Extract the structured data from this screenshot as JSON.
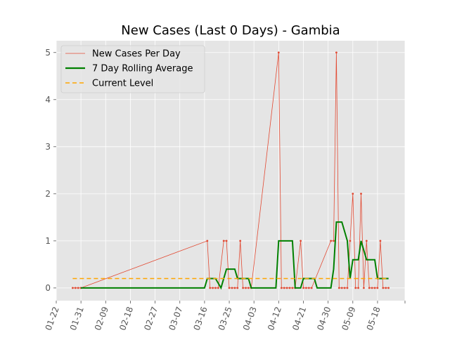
{
  "chart_data": {
    "type": "line",
    "title": "New Cases (Last 0 Days) - Gambia",
    "xlabel": "",
    "ylabel": "",
    "x_ticks": [
      "01-22",
      "01-31",
      "02-09",
      "02-18",
      "02-27",
      "03-07",
      "03-16",
      "03-25",
      "04-03",
      "04-12",
      "04-21",
      "04-30",
      "05-09",
      "05-18"
    ],
    "y_ticks": [
      "0",
      "1",
      "2",
      "3",
      "4",
      "5"
    ],
    "ylim": [
      -0.27,
      5.25
    ],
    "xlim": [
      "01-22",
      "05-28"
    ],
    "grid": true,
    "legend_position": "top-left",
    "series": [
      {
        "name": "New Cases Per Day",
        "style": "line-with-markers",
        "color": "#E24A33",
        "points": [
          [
            "01-28",
            0
          ],
          [
            "01-29",
            0
          ],
          [
            "01-30",
            0
          ],
          [
            "01-31",
            0
          ],
          [
            "03-17",
            1
          ],
          [
            "03-18",
            0
          ],
          [
            "03-19",
            0
          ],
          [
            "03-20",
            0
          ],
          [
            "03-21",
            0
          ],
          [
            "03-23",
            1
          ],
          [
            "03-24",
            1
          ],
          [
            "03-25",
            0
          ],
          [
            "03-26",
            0
          ],
          [
            "03-27",
            0
          ],
          [
            "03-28",
            0
          ],
          [
            "03-29",
            1
          ],
          [
            "03-30",
            0
          ],
          [
            "03-31",
            0
          ],
          [
            "04-01",
            0
          ],
          [
            "04-02",
            0
          ],
          [
            "04-12",
            5
          ],
          [
            "04-13",
            0
          ],
          [
            "04-14",
            0
          ],
          [
            "04-15",
            0
          ],
          [
            "04-16",
            0
          ],
          [
            "04-17",
            0
          ],
          [
            "04-18",
            0
          ],
          [
            "04-20",
            1
          ],
          [
            "04-21",
            0
          ],
          [
            "04-22",
            0
          ],
          [
            "04-23",
            0
          ],
          [
            "04-24",
            0
          ],
          [
            "05-01",
            1
          ],
          [
            "05-02",
            1
          ],
          [
            "05-03",
            5
          ],
          [
            "05-04",
            0
          ],
          [
            "05-05",
            0
          ],
          [
            "05-06",
            0
          ],
          [
            "05-07",
            0
          ],
          [
            "05-08",
            1
          ],
          [
            "05-09",
            2
          ],
          [
            "05-10",
            0
          ],
          [
            "05-11",
            0
          ],
          [
            "05-12",
            2
          ],
          [
            "05-13",
            0
          ],
          [
            "05-14",
            1
          ],
          [
            "05-15",
            0
          ],
          [
            "05-16",
            0
          ],
          [
            "05-17",
            0
          ],
          [
            "05-18",
            0
          ],
          [
            "05-19",
            1
          ],
          [
            "05-20",
            0
          ],
          [
            "05-21",
            0
          ],
          [
            "05-22",
            0
          ]
        ]
      },
      {
        "name": "7 Day Rolling Average",
        "style": "line",
        "color": "#008000",
        "points": [
          [
            "01-31",
            0
          ],
          [
            "03-16",
            0
          ],
          [
            "03-17",
            0.2
          ],
          [
            "03-20",
            0.2
          ],
          [
            "03-22",
            0
          ],
          [
            "03-24",
            0.4
          ],
          [
            "03-27",
            0.4
          ],
          [
            "03-28",
            0.2
          ],
          [
            "04-01",
            0.2
          ],
          [
            "04-02",
            0
          ],
          [
            "04-11",
            0
          ],
          [
            "04-12",
            1
          ],
          [
            "04-17",
            1
          ],
          [
            "04-18",
            0
          ],
          [
            "04-20",
            0
          ],
          [
            "04-21",
            0.2
          ],
          [
            "04-25",
            0.2
          ],
          [
            "04-26",
            0
          ],
          [
            "05-01",
            0
          ],
          [
            "05-02",
            0.4
          ],
          [
            "05-03",
            1.4
          ],
          [
            "05-05",
            1.4
          ],
          [
            "05-07",
            1
          ],
          [
            "05-08",
            0.2
          ],
          [
            "05-09",
            0.6
          ],
          [
            "05-11",
            0.6
          ],
          [
            "05-12",
            1
          ],
          [
            "05-14",
            0.6
          ],
          [
            "05-17",
            0.6
          ],
          [
            "05-18",
            0.2
          ],
          [
            "05-22",
            0.2
          ]
        ]
      },
      {
        "name": "Current Level",
        "style": "dashed",
        "color": "#FFA500",
        "points": [
          [
            "01-28",
            0.2
          ],
          [
            "05-22",
            0.2
          ]
        ]
      }
    ]
  }
}
